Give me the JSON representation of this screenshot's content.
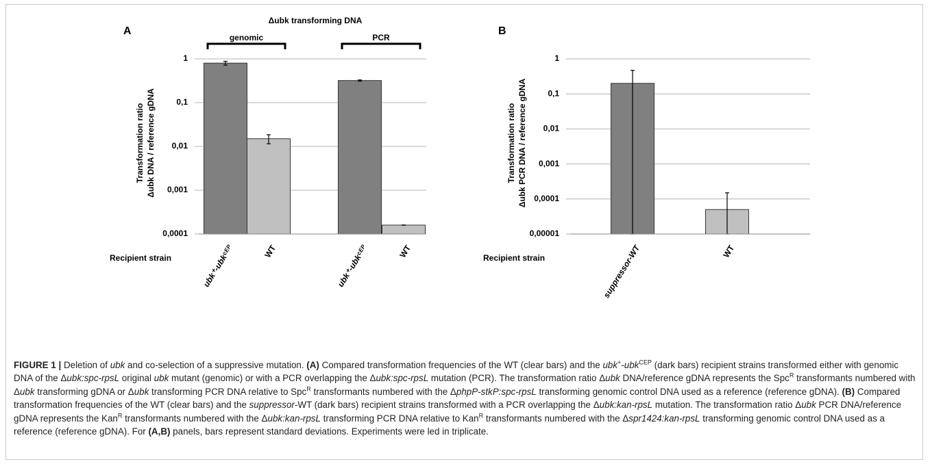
{
  "chart_data": [
    {
      "type": "bar",
      "panel": "A",
      "title": "Δubk transforming DNA",
      "ylabel": [
        "Transformation ratio",
        "Δubk DNA / reference gDNA"
      ],
      "xlabel": "Recipient strain",
      "groups": [
        "genomic",
        "PCR"
      ],
      "categories": [
        "ubk⁺-ubkᶜᴱᴾ",
        "WT",
        "ubk⁺-ubkᶜᴱᴾ",
        "WT"
      ],
      "values": [
        0.8,
        0.015,
        0.32,
        0.00016
      ],
      "errors": [
        0.08,
        0.0035,
        0.01,
        1e-06
      ],
      "colors": [
        "#808080",
        "#c0c0c0",
        "#808080",
        "#c0c0c0"
      ],
      "log_scale": "y",
      "grid": true,
      "ylim": [
        0.0001,
        1
      ],
      "yticks": [
        1,
        {
          "value": 0.1,
          "label": "0,1"
        },
        {
          "value": 0.01,
          "label": "0,01"
        },
        {
          "value": 0.001,
          "label": "0,001"
        },
        {
          "value": 0.0001,
          "label": "0,0001"
        }
      ]
    },
    {
      "type": "bar",
      "panel": "B",
      "ylabel": [
        "Transformation ratio",
        "Δubk PCR DNA / reference gDNA"
      ],
      "xlabel": "Recipient strain",
      "categories": [
        "suppressor-WT",
        "WT"
      ],
      "values": [
        0.2,
        5e-05
      ],
      "errors": [
        0.27,
        0.0001
      ],
      "colors": [
        "#808080",
        "#c0c0c0"
      ],
      "log_scale": "y",
      "grid": true,
      "ylim": [
        1e-05,
        1
      ],
      "yticks": [
        1,
        {
          "value": 0.1,
          "label": "0,1"
        },
        {
          "value": 0.01,
          "label": "0,01"
        },
        {
          "value": 0.001,
          "label": "0,001"
        },
        {
          "value": 0.0001,
          "label": "0,0001"
        },
        {
          "value": 1e-05,
          "label": "0,00001"
        }
      ]
    }
  ],
  "caption": [
    "FIGURE 1 |",
    " Deletion of ",
    "ubk",
    " and co-selection of a suppressive mutation. ",
    "(A)",
    " Compared transformation frequencies of the WT (clear bars) and the ",
    "ubk",
    "+",
    "-",
    "ubk",
    "CEP",
    " (dark bars) recipient strains transformed either with genomic DNA of the Δ",
    "ubk:spc-rpsL",
    " original ",
    "ubk",
    " mutant (genomic) or with a PCR overlapping the Δ",
    "ubk:spc-rpsL",
    " mutation (PCR). The transformation ratio Δ",
    "ubk",
    " DNA/reference gDNA represents the Spc",
    "R",
    " transformants numbered with Δ",
    "ubk",
    " transforming gDNA or Δ",
    "ubk",
    " transforming PCR DNA relative to Spc",
    "R",
    " transformants numbered with the Δ",
    "phpP-stkP:spc-rpsL",
    " transforming genomic control DNA used as a reference (reference gDNA). ",
    "(B)",
    " Compared transformation frequencies of the WT (clear bars) and the ",
    "suppressor",
    "-WT (dark bars) recipient strains transformed with a PCR overlapping the Δ",
    "ubk:kan-rpsL",
    " mutation. The transformation ratio Δ",
    "ubk",
    " PCR DNA/reference gDNA represents the Kan",
    "R",
    " transformants numbered with the Δ",
    "ubk:kan-rpsL",
    " transforming PCR DNA relative to Kan",
    "R",
    " transformants numbered with the Δ",
    "spr1424:kan-rpsL",
    " transforming genomic control DNA used as a reference (reference gDNA). For ",
    "(A,B)",
    " panels, bars represent standard deviations. Experiments were led in triplicate."
  ]
}
